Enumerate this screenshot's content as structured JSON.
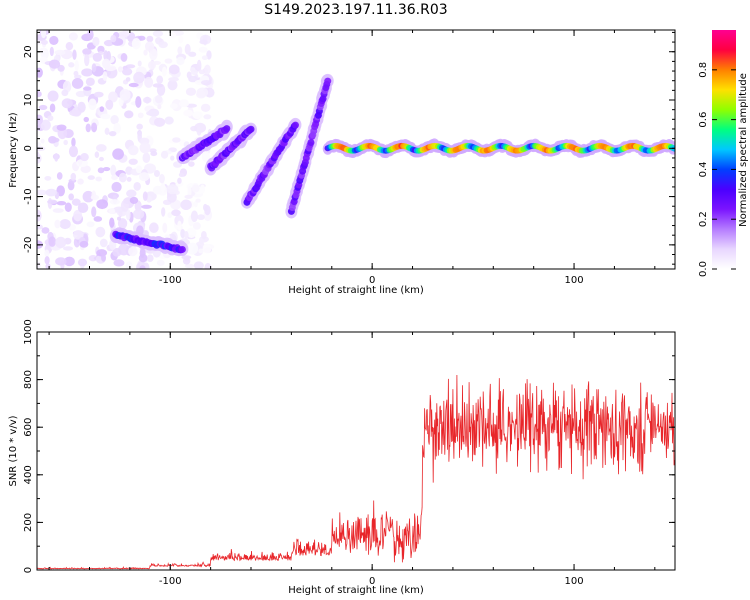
{
  "title": "S149.2023.197.11.36.R03",
  "chart_data": [
    {
      "type": "heatmap",
      "xlabel": "Height of straight line (km)",
      "ylabel": "Frequency (Hz)",
      "xlim": [
        -166,
        150
      ],
      "ylim": [
        -25,
        24.5
      ],
      "x_ticks": [
        -100,
        0,
        100
      ],
      "y_ticks": [
        -20,
        -10,
        0,
        10,
        20
      ],
      "colorbar": {
        "label": "Normalized spectral amplitude",
        "range": [
          0.0,
          0.96
        ],
        "ticks": [
          0.0,
          0.2,
          0.4,
          0.6,
          0.8
        ],
        "colormap": [
          "#ffffff",
          "#e8d6ff",
          "#b57cff",
          "#7b14ff",
          "#4a00ff",
          "#0040ff",
          "#00c8ff",
          "#00ff80",
          "#90ff00",
          "#ffe000",
          "#ff8000",
          "#ff0040",
          "#ff0090"
        ]
      },
      "features": [
        {
          "name": "noise_cloud",
          "x_range": [
            -166,
            -100
          ],
          "y_range": [
            -25,
            24.5
          ],
          "amplitude": 0.08
        },
        {
          "name": "low_band",
          "x_range": [
            -127,
            -94
          ],
          "y": [
            -18,
            -21
          ],
          "amplitude": 0.3
        },
        {
          "name": "streak_1",
          "x_range": [
            -94,
            -72
          ],
          "y": [
            -2,
            4
          ],
          "amplitude": 0.25
        },
        {
          "name": "streak_2",
          "x_range": [
            -80,
            -60
          ],
          "y": [
            -4,
            4
          ],
          "amplitude": 0.25
        },
        {
          "name": "streak_3",
          "x_range": [
            -62,
            -38
          ],
          "y": [
            -11,
            5
          ],
          "amplitude": 0.25
        },
        {
          "name": "streak_4",
          "x_range": [
            -40,
            -22
          ],
          "y": [
            -13,
            14
          ],
          "amplitude": 0.25
        },
        {
          "name": "main_line",
          "x_range": [
            -22,
            150
          ],
          "y": 0,
          "amplitude": 0.7
        }
      ]
    },
    {
      "type": "line",
      "xlabel": "Height of straight line (km)",
      "ylabel": "SNR (10 * v/v)",
      "xlim": [
        -166,
        150
      ],
      "ylim": [
        0,
        1000
      ],
      "x_ticks": [
        -100,
        0,
        100
      ],
      "y_ticks": [
        0,
        200,
        400,
        600,
        800,
        1000
      ],
      "color": "#e8262a",
      "segments": [
        {
          "x_range": [
            -166,
            -110
          ],
          "baseline": 5,
          "noise": 8
        },
        {
          "x_range": [
            -110,
            -80
          ],
          "baseline": 15,
          "noise": 25
        },
        {
          "x_range": [
            -80,
            -40
          ],
          "baseline": 40,
          "noise": 70
        },
        {
          "x_range": [
            -40,
            -20
          ],
          "baseline": 60,
          "noise": 120
        },
        {
          "x_range": [
            -20,
            25
          ],
          "baseline": 150,
          "noise": 180
        },
        {
          "x_range": [
            25,
            150
          ],
          "baseline": 600,
          "noise": 300
        }
      ]
    }
  ]
}
